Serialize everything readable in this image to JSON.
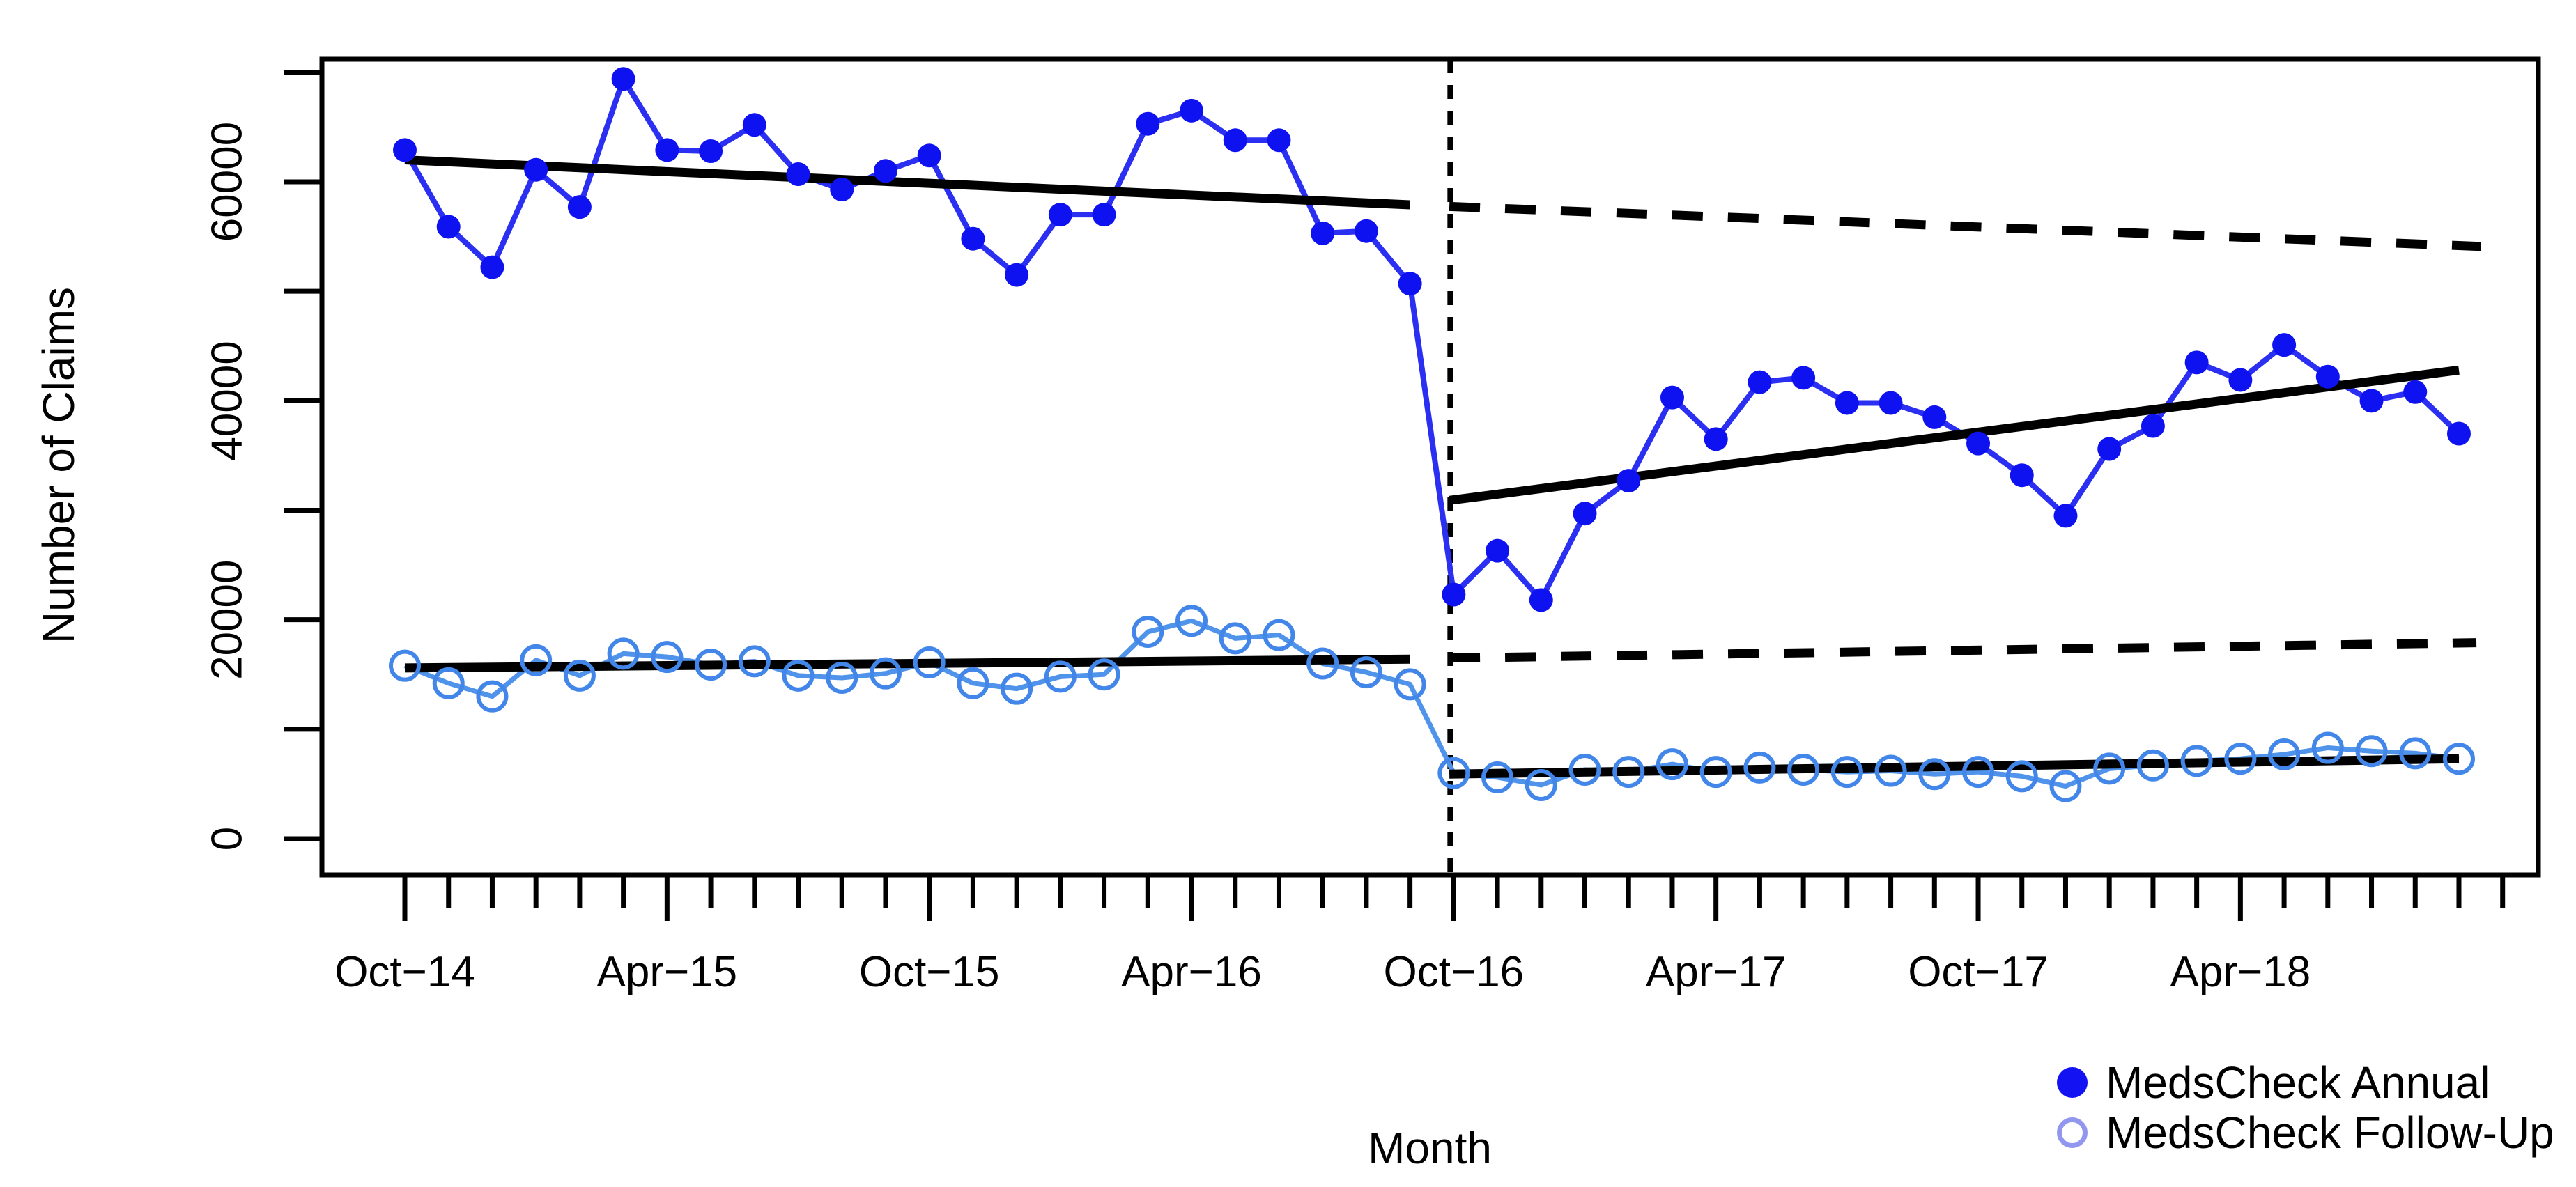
{
  "chart_data": {
    "type": "line",
    "title": "",
    "xlabel": "Month",
    "ylabel": "Number of Claims",
    "x_categories": [
      "Oct-14",
      "Nov-14",
      "Dec-14",
      "Jan-15",
      "Feb-15",
      "Mar-15",
      "Apr-15",
      "May-15",
      "Jun-15",
      "Jul-15",
      "Aug-15",
      "Sep-15",
      "Oct-15",
      "Nov-15",
      "Dec-15",
      "Jan-16",
      "Feb-16",
      "Mar-16",
      "Apr-16",
      "May-16",
      "Jun-16",
      "Jul-16",
      "Aug-16",
      "Sep-16",
      "Oct-16",
      "Nov-16",
      "Dec-16",
      "Jan-17",
      "Feb-17",
      "Mar-17",
      "Apr-17",
      "May-17",
      "Jun-17",
      "Jul-17",
      "Aug-17",
      "Sep-17",
      "Oct-17",
      "Nov-17",
      "Dec-17",
      "Jan-18",
      "Feb-18",
      "Mar-18",
      "Apr-18",
      "May-18",
      "Jun-18",
      "Jul-18",
      "Aug-18",
      "Sep-18"
    ],
    "x_major_ticks": [
      {
        "index": 0,
        "label": "Oct−14"
      },
      {
        "index": 6,
        "label": "Apr−15"
      },
      {
        "index": 12,
        "label": "Oct−15"
      },
      {
        "index": 18,
        "label": "Apr−16"
      },
      {
        "index": 24,
        "label": "Oct−16"
      },
      {
        "index": 30,
        "label": "Apr−17"
      },
      {
        "index": 36,
        "label": "Oct−17"
      },
      {
        "index": 42,
        "label": "Apr−18"
      }
    ],
    "y_axis": {
      "min": 0,
      "max": 72000,
      "minor_tick_step": 10000,
      "labeled_ticks": [
        0,
        20000,
        40000,
        60000
      ],
      "grid": false
    },
    "series": [
      {
        "name": "MedsCheck Annual",
        "marker": "filled-circle",
        "marker_color": "#0f12f0",
        "line_color": "#2a2ff2",
        "values": [
          62900,
          55900,
          52200,
          61100,
          57700,
          69400,
          62900,
          62800,
          65200,
          60700,
          59300,
          61000,
          62400,
          54800,
          51500,
          57000,
          57000,
          65300,
          66500,
          63800,
          63800,
          55300,
          55500,
          50700,
          22300,
          26300,
          21800,
          29700,
          32700,
          40300,
          36500,
          41700,
          42100,
          39800,
          39800,
          38500,
          36100,
          33200,
          29500,
          35600,
          37700,
          43500,
          41900,
          45100,
          42200,
          40000,
          40800,
          37000
        ]
      },
      {
        "name": "MedsCheck Follow-Up",
        "marker": "open-circle",
        "marker_color": "#4186e8",
        "line_color": "#4f93ea",
        "values": [
          15800,
          14200,
          13000,
          16300,
          14900,
          16900,
          16600,
          15900,
          16200,
          14900,
          14700,
          15100,
          16100,
          14200,
          13700,
          14800,
          15000,
          18900,
          19900,
          18300,
          18600,
          16000,
          15200,
          14100,
          6000,
          5600,
          4900,
          6300,
          6100,
          6800,
          6100,
          6500,
          6300,
          6100,
          6200,
          5900,
          6100,
          5700,
          4800,
          6400,
          6700,
          7100,
          7300,
          7700,
          8300,
          8000,
          7800,
          7300
        ]
      }
    ],
    "trend_lines": [
      {
        "name": "annual-pre-trend",
        "style": "solid",
        "month_start": 0,
        "value_start": 62000,
        "month_end": 23,
        "value_end": 57900
      },
      {
        "name": "annual-counterfactual-trend",
        "style": "dashed",
        "month_start": 23.9,
        "value_start": 57750,
        "month_end": 47.5,
        "value_end": 54100
      },
      {
        "name": "annual-post-trend",
        "style": "solid",
        "month_start": 23.9,
        "value_start": 30900,
        "month_end": 47,
        "value_end": 42800
      },
      {
        "name": "followup-pre-trend",
        "style": "solid",
        "month_start": 0,
        "value_start": 15600,
        "month_end": 23,
        "value_end": 16400
      },
      {
        "name": "followup-counterfactual-trend",
        "style": "dashed",
        "month_start": 23.9,
        "value_start": 16500,
        "month_end": 47.4,
        "value_end": 17900
      },
      {
        "name": "followup-post-trend",
        "style": "solid",
        "month_start": 23.9,
        "value_start": 5900,
        "month_end": 47,
        "value_end": 7300
      }
    ],
    "intervention_line": {
      "month_index": 23.92,
      "at_label": "Oct−16",
      "style": "dashed-vertical"
    },
    "legend": [
      {
        "label": "MedsCheck Annual",
        "symbol": "filled-circle",
        "color": "#1212f2"
      },
      {
        "label": "MedsCheck Follow-Up",
        "symbol": "open-circle",
        "color": "#9196ef"
      }
    ],
    "colors": {
      "trend": "#000000",
      "axis": "#000000",
      "background": "#ffffff"
    },
    "legend_position": "bottom-right"
  }
}
